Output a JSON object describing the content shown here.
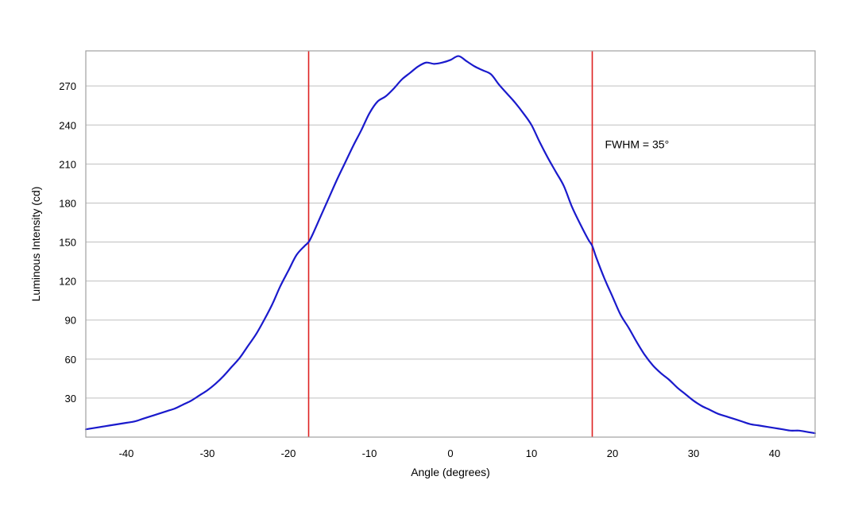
{
  "chart_data": {
    "type": "line",
    "title": "",
    "xlabel": "Angle (degrees)",
    "ylabel": "Luminous Intensity (cd)",
    "xlim": [
      -45,
      45
    ],
    "ylim": [
      0,
      297
    ],
    "xticks": [
      -40,
      -30,
      -20,
      -10,
      0,
      10,
      20,
      30,
      40
    ],
    "yticks": [
      30,
      60,
      90,
      120,
      150,
      180,
      210,
      240,
      270
    ],
    "grid": "horizontal",
    "annotation": "FWHM = 35°",
    "colors": {
      "series": "#1a1acc",
      "markers": "#dd2222",
      "grid": "#bfbfbf",
      "frame": "#a0a0a0"
    },
    "vertical_markers": [
      -17.5,
      17.5
    ],
    "series": [
      {
        "x": [
          -45,
          -44,
          -42,
          -40,
          -39,
          -38,
          -37,
          -36,
          -35,
          -34,
          -33,
          -32,
          -31,
          -30,
          -29,
          -28,
          -27,
          -26,
          -25,
          -24,
          -23,
          -22,
          -21,
          -20,
          -19,
          -18,
          -17.5,
          -17,
          -16,
          -15,
          -14,
          -13,
          -12,
          -11,
          -10,
          -9,
          -8,
          -7,
          -6,
          -5,
          -4,
          -3,
          -2,
          -1,
          0,
          1,
          2,
          3,
          4,
          5,
          6,
          7,
          8,
          9,
          10,
          11,
          12,
          13,
          14,
          15,
          16,
          17,
          17.5,
          18,
          19,
          20,
          21,
          22,
          23,
          24,
          25,
          26,
          27,
          28,
          29,
          30,
          31,
          32,
          33,
          34,
          35,
          36,
          37,
          38,
          39,
          40,
          41,
          42,
          43,
          44,
          45
        ],
        "y": [
          6,
          7,
          9,
          11,
          12,
          14,
          16,
          18,
          20,
          22,
          25,
          28,
          32,
          36,
          41,
          47,
          54,
          61,
          70,
          79,
          90,
          102,
          116,
          128,
          140,
          147,
          150,
          156,
          170,
          184,
          198,
          211,
          224,
          236,
          249,
          258,
          262,
          268,
          275,
          280,
          285,
          288,
          287,
          288,
          290,
          293,
          289,
          285,
          282,
          279,
          271,
          264,
          257,
          249,
          240,
          227,
          215,
          204,
          193,
          177,
          164,
          152,
          147,
          138,
          122,
          108,
          94,
          84,
          73,
          63,
          55,
          49,
          44,
          38,
          33,
          28,
          24,
          21,
          18,
          16,
          14,
          12,
          10,
          9,
          8,
          7,
          6,
          5,
          5,
          4,
          3
        ]
      }
    ]
  }
}
